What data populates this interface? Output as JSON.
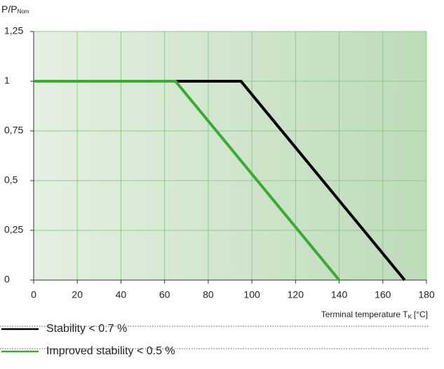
{
  "chart_data": {
    "type": "line",
    "y_label": {
      "text": "P/P",
      "sub": "Nom"
    },
    "x_label": {
      "text": "Terminal temperature T",
      "sub": "K",
      "suffix": "[°C]"
    },
    "xlim": [
      0,
      180
    ],
    "xticks": [
      0,
      20,
      40,
      60,
      80,
      100,
      120,
      140,
      160,
      180
    ],
    "ylim": [
      0,
      1.25
    ],
    "yticks": [
      0,
      {
        "value": 0.25,
        "label": "0,25"
      },
      {
        "value": 0.5,
        "label": "0,5"
      },
      {
        "value": 0.75,
        "label": "0,75"
      },
      1,
      {
        "value": 1.25,
        "label": "1,25"
      }
    ],
    "grid": true,
    "series": [
      {
        "name": "Stability < 0.7 %",
        "color": "#000000",
        "x": [
          0,
          95,
          170
        ],
        "values": [
          1,
          1,
          0
        ]
      },
      {
        "name": "Improved stability < 0.5 %",
        "color": "#3aaa35",
        "x": [
          0,
          65,
          140
        ],
        "values": [
          1,
          1,
          0
        ]
      }
    ]
  }
}
